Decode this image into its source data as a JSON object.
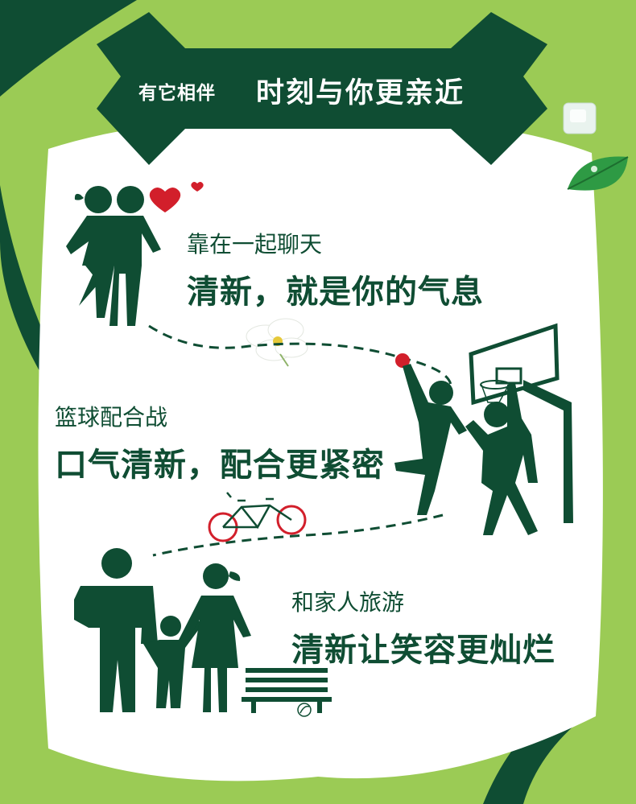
{
  "banner": {
    "small_text": "有它相伴",
    "big_text": "时刻与你更亲近"
  },
  "sections": [
    {
      "subtitle": "靠在一起聊天",
      "headline": "清新，就是你的气息"
    },
    {
      "subtitle": "篮球配合战",
      "headline": "口气清新，配合更紧密"
    },
    {
      "subtitle": "和家人旅游",
      "headline": "清新让笑容更灿烂"
    }
  ],
  "colors": {
    "background": "#9bcb55",
    "dark_green": "#0f4d33",
    "card": "#ffffff",
    "accent_red": "#d21f2b"
  }
}
